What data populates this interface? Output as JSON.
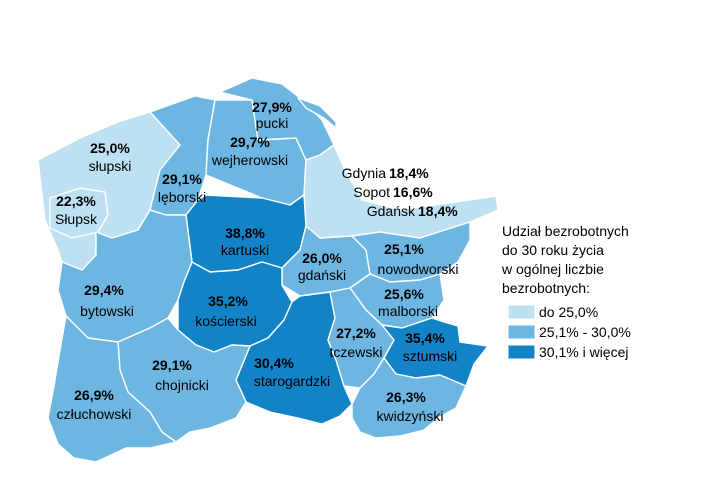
{
  "regions": {
    "slupski": {
      "name": "słupski",
      "value": "25,0%"
    },
    "slupsk": {
      "name": "Słupsk",
      "value": "22,3%"
    },
    "pucki": {
      "name": "pucki",
      "value": "27,9%"
    },
    "wejherowski": {
      "name": "wejherowski",
      "value": "29,7%"
    },
    "leborski": {
      "name": "lęborski",
      "value": "29,1%"
    },
    "kartuski": {
      "name": "kartuski",
      "value": "38,8%"
    },
    "gdanski": {
      "name": "gdański",
      "value": "26,0%"
    },
    "nowodworski": {
      "name": "nowodworski",
      "value": "25,1%"
    },
    "malborski": {
      "name": "malborski",
      "value": "25,6%"
    },
    "bytowski": {
      "name": "bytowski",
      "value": "29,4%"
    },
    "koscierski": {
      "name": "kościerski",
      "value": "35,2%"
    },
    "tczewski": {
      "name": "tczewski",
      "value": "27,2%"
    },
    "sztumski": {
      "name": "sztumski",
      "value": "35,4%"
    },
    "chojnicki": {
      "name": "chojnicki",
      "value": "29,1%"
    },
    "starogardzki": {
      "name": "starogardzki",
      "value": "30,4%"
    },
    "czluchowski": {
      "name": "człuchowski",
      "value": "26,9%"
    },
    "kwidzynski": {
      "name": "kwidzyński",
      "value": "26,3%"
    }
  },
  "cities": [
    {
      "name": "Gdynia",
      "value": "18,4%"
    },
    {
      "name": "Sopot",
      "value": "16,6%"
    },
    {
      "name": "Gdańsk",
      "value": "18,4%"
    }
  ],
  "legend": {
    "title_lines": [
      "Udział bezrobotnych",
      "do 30 roku życia",
      "w ogólnej liczbie",
      "bezrobotnych:"
    ],
    "items": [
      {
        "label": "do 25,0%",
        "color": "#bde0f2"
      },
      {
        "label": "25,1% - 30,0%",
        "color": "#6db6e2"
      },
      {
        "label": "30,1% i więcej",
        "color": "#1283c6"
      }
    ]
  },
  "colors": {
    "low": "#bde0f2",
    "mid": "#6db6e2",
    "high": "#1283c6"
  }
}
